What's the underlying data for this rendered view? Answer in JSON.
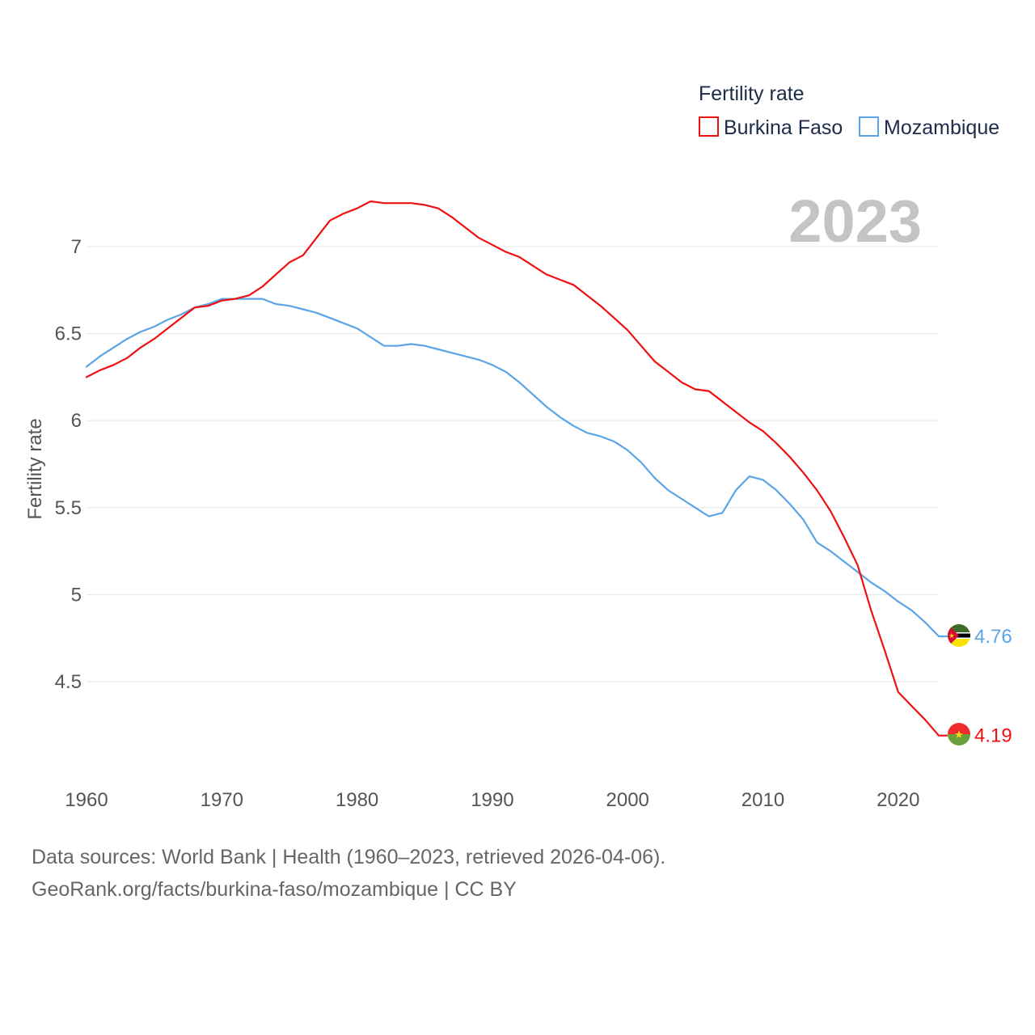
{
  "chart_data": {
    "type": "line",
    "title": "Fertility rate",
    "ylabel": "Fertility rate",
    "xlabel": "",
    "year_label": "2023",
    "xlim": [
      1960,
      2024.3
    ],
    "ylim": [
      4.0,
      7.4
    ],
    "x_ticks": [
      1960,
      1970,
      1980,
      1990,
      2000,
      2010,
      2020
    ],
    "y_ticks": [
      {
        "value": 4.5,
        "label": "4.5"
      },
      {
        "value": 5,
        "label": "5"
      },
      {
        "value": 5.5,
        "label": "5.5"
      },
      {
        "value": 6,
        "label": "6"
      },
      {
        "value": 6.5,
        "label": "6.5"
      },
      {
        "value": 7,
        "label": "7"
      }
    ],
    "grid": true,
    "legend_position": "top-right",
    "x": [
      1960,
      1961,
      1962,
      1963,
      1964,
      1965,
      1966,
      1967,
      1968,
      1969,
      1970,
      1971,
      1972,
      1973,
      1974,
      1975,
      1976,
      1977,
      1978,
      1979,
      1980,
      1981,
      1982,
      1983,
      1984,
      1985,
      1986,
      1987,
      1988,
      1989,
      1990,
      1991,
      1992,
      1993,
      1994,
      1995,
      1996,
      1997,
      1998,
      1999,
      2000,
      2001,
      2002,
      2003,
      2004,
      2005,
      2006,
      2007,
      2008,
      2009,
      2010,
      2011,
      2012,
      2013,
      2014,
      2015,
      2016,
      2017,
      2018,
      2019,
      2020,
      2021,
      2022,
      2023
    ],
    "series": [
      {
        "name": "Burkina Faso",
        "color": "#ee1111",
        "end_label": "4.19",
        "flag": "burkina-faso-flag",
        "values": [
          6.25,
          6.29,
          6.32,
          6.36,
          6.42,
          6.47,
          6.53,
          6.59,
          6.65,
          6.66,
          6.69,
          6.7,
          6.72,
          6.77,
          6.84,
          6.91,
          6.95,
          7.05,
          7.15,
          7.19,
          7.22,
          7.26,
          7.25,
          7.25,
          7.25,
          7.24,
          7.22,
          7.17,
          7.11,
          7.05,
          7.01,
          6.97,
          6.94,
          6.89,
          6.84,
          6.81,
          6.78,
          6.72,
          6.66,
          6.59,
          6.52,
          6.43,
          6.34,
          6.28,
          6.22,
          6.18,
          6.17,
          6.11,
          6.05,
          5.99,
          5.94,
          5.87,
          5.79,
          5.7,
          5.6,
          5.48,
          5.33,
          5.17,
          4.91,
          4.68,
          4.44,
          4.36,
          4.28,
          4.19
        ]
      },
      {
        "name": "Mozambique",
        "color": "#5ba4e6",
        "end_label": "4.76",
        "flag": "mozambique-flag",
        "values": [
          6.31,
          6.37,
          6.42,
          6.47,
          6.51,
          6.54,
          6.58,
          6.61,
          6.65,
          6.67,
          6.7,
          6.7,
          6.7,
          6.7,
          6.67,
          6.66,
          6.64,
          6.62,
          6.59,
          6.56,
          6.53,
          6.48,
          6.43,
          6.43,
          6.44,
          6.43,
          6.41,
          6.39,
          6.37,
          6.35,
          6.32,
          6.28,
          6.22,
          6.15,
          6.08,
          6.02,
          5.97,
          5.93,
          5.91,
          5.88,
          5.83,
          5.76,
          5.67,
          5.6,
          5.55,
          5.5,
          5.45,
          5.47,
          5.6,
          5.68,
          5.66,
          5.6,
          5.52,
          5.43,
          5.3,
          5.25,
          5.19,
          5.13,
          5.07,
          5.02,
          4.96,
          4.91,
          4.84,
          4.76
        ]
      }
    ]
  },
  "footer": {
    "line1": "Data sources: World Bank | Health (1960–2023, retrieved 2026-04-06).",
    "line2": "GeoRank.org/facts/burkina-faso/mozambique | CC BY"
  }
}
